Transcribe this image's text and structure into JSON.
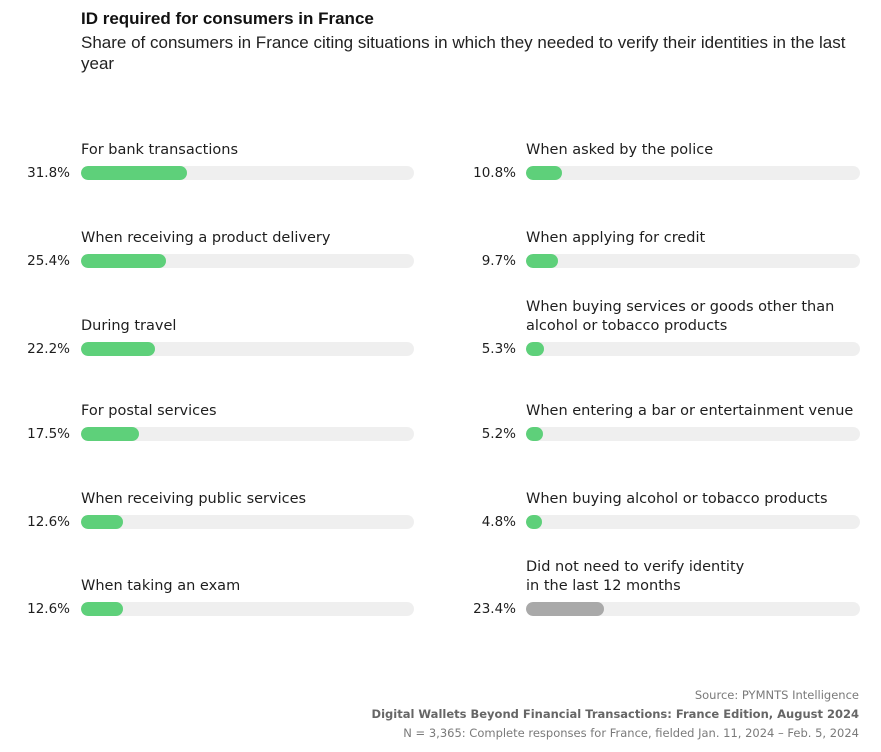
{
  "header": {
    "title": "ID required for consumers in France",
    "subtitle": "Share of consumers in France citing situations in which they needed to verify their identities in the last year"
  },
  "chart_data": {
    "type": "bar",
    "orientation": "horizontal",
    "unit": "%",
    "xlim": [
      0,
      100
    ],
    "title": "ID required for consumers in France",
    "subtitle": "Share of consumers in France citing situations in which they needed to verify their identities in the last year",
    "colors": {
      "fill": "#5ed07a",
      "fill_neutral": "#a9a9a9",
      "track": "#efefef"
    },
    "left": [
      {
        "label": "For bank transactions",
        "value": 31.8,
        "display": "31.8%"
      },
      {
        "label": "When receiving a product delivery",
        "value": 25.4,
        "display": "25.4%"
      },
      {
        "label": "During travel",
        "value": 22.2,
        "display": "22.2%"
      },
      {
        "label": "For postal services",
        "value": 17.5,
        "display": "17.5%"
      },
      {
        "label": "When receiving public services",
        "value": 12.6,
        "display": "12.6%"
      },
      {
        "label": "When taking an exam",
        "value": 12.6,
        "display": "12.6%"
      }
    ],
    "right": [
      {
        "label": "When asked by the police",
        "value": 10.8,
        "display": "10.8%"
      },
      {
        "label": "When applying for credit",
        "value": 9.7,
        "display": "9.7%"
      },
      {
        "label": "When buying services or goods other than\nalcohol or tobacco products",
        "value": 5.3,
        "display": "5.3%"
      },
      {
        "label": "When entering a bar or entertainment venue",
        "value": 5.2,
        "display": "5.2%"
      },
      {
        "label": "When buying alcohol or tobacco products",
        "value": 4.8,
        "display": "4.8%"
      },
      {
        "label": "Did not need to verify identity\nin the last 12 months",
        "value": 23.4,
        "display": "23.4%",
        "neutral": true
      }
    ]
  },
  "footer": {
    "source": "Source: PYMNTS Intelligence",
    "report": "Digital Wallets Beyond Financial Transactions: France Edition, August 2024",
    "note": "N = 3,365: Complete responses for France, fielded Jan. 11, 2024 – Feb. 5, 2024"
  }
}
